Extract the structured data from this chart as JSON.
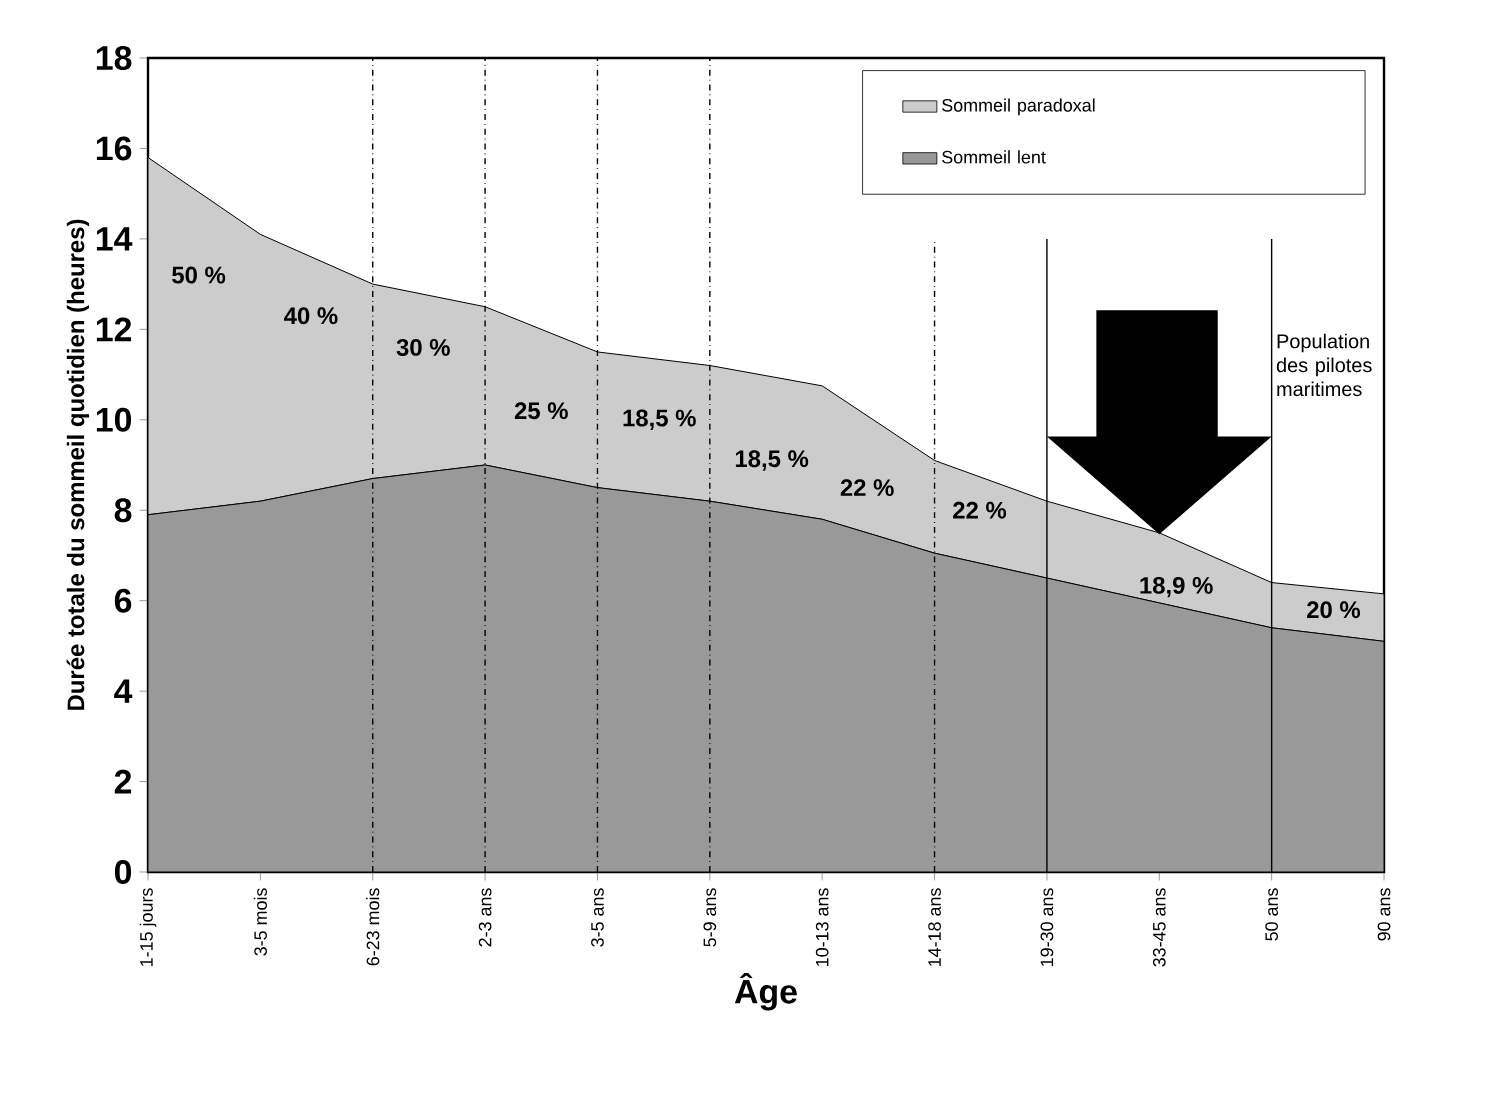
{
  "chart_data": {
    "type": "area",
    "stacked": true,
    "xlabel": "Âge",
    "ylabel": "Durée totale du sommeil quotidien (heures)",
    "categories": [
      "1-15 jours",
      "3-5 mois",
      "6-23 mois",
      "2-3 ans",
      "3-5 ans",
      "5-9 ans",
      "10-13 ans",
      "14-18 ans",
      "19-30 ans",
      "33-45 ans",
      "50 ans",
      "90 ans"
    ],
    "series": [
      {
        "name": "Sommeil lent",
        "color": "#999999",
        "values": [
          7.9,
          8.2,
          8.7,
          9.0,
          8.5,
          8.2,
          7.8,
          7.05,
          6.5,
          5.95,
          5.4,
          5.1
        ]
      },
      {
        "name": "Sommeil paradoxal",
        "color": "#cccccc",
        "values": [
          7.9,
          5.9,
          4.3,
          3.5,
          3.0,
          3.0,
          2.95,
          2.05,
          1.7,
          1.55,
          1.0,
          1.05
        ]
      }
    ],
    "ylim": [
      0,
      18
    ],
    "yticks": [
      0,
      2,
      4,
      6,
      8,
      10,
      12,
      14,
      16,
      18
    ],
    "legend": "top right",
    "ref_lines": [
      {
        "axis": "x",
        "value": "6-23 mois",
        "line_style": "dashed"
      },
      {
        "axis": "x",
        "value": "2-3 ans",
        "line_style": "dashed"
      },
      {
        "axis": "x",
        "value": "3-5 ans",
        "line_style": "dashed"
      },
      {
        "axis": "x",
        "value": "5-9 ans",
        "line_style": "dashed"
      },
      {
        "axis": "x",
        "value": "14-18 ans",
        "line_style": "dashed"
      },
      {
        "axis": "x",
        "value": "19-30 ans",
        "line_style": "solid"
      },
      {
        "axis": "x",
        "value": "50 ans",
        "line_style": "solid"
      }
    ],
    "annotations": [
      "50 %",
      "40 %",
      "30 %",
      "25 %",
      "18,5 %",
      "18,5 %",
      "22 %",
      "22 %",
      "18,9 %",
      "20 %",
      "Population des pilotes maritimes"
    ]
  }
}
